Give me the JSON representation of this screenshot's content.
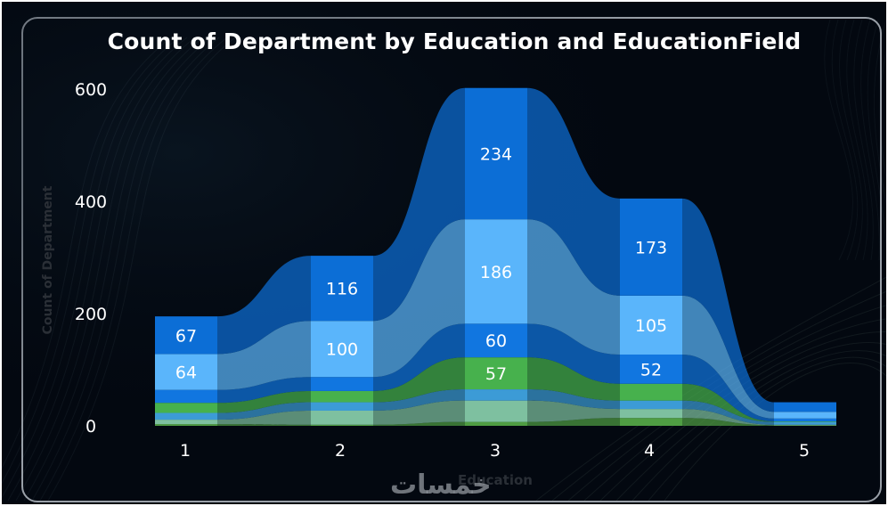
{
  "chart_data": {
    "type": "ribbon",
    "title": "Count of Department by Education and EducationField",
    "xlabel": "Education",
    "ylabel": "Count of Department",
    "categories": [
      "1",
      "2",
      "3",
      "4",
      "5"
    ],
    "ylim": [
      0,
      600
    ],
    "yticks": [
      0,
      200,
      400,
      600
    ],
    "grid": false,
    "legend": "none",
    "series": [
      {
        "color": "#4f9d43",
        "values": [
          3,
          2,
          7,
          14,
          1
        ],
        "show_labels": false
      },
      {
        "color": "#7ec0a0",
        "values": [
          8,
          25,
          38,
          16,
          1
        ],
        "show_labels": false
      },
      {
        "color": "#3c9bd6",
        "values": [
          12,
          15,
          20,
          15,
          5
        ],
        "show_labels": false
      },
      {
        "color": "#47b14d",
        "values": [
          18,
          20,
          57,
          30,
          1
        ],
        "show_labels": [
          false,
          false,
          true,
          false,
          false
        ]
      },
      {
        "color": "#1176e0",
        "values": [
          23,
          25,
          60,
          52,
          5
        ],
        "show_labels": [
          false,
          false,
          true,
          true,
          false
        ]
      },
      {
        "color": "#5ab5fb",
        "values": [
          64,
          100,
          186,
          105,
          12
        ],
        "show_labels": [
          true,
          true,
          true,
          true,
          false
        ]
      },
      {
        "color": "#0c6ed6",
        "values": [
          67,
          116,
          234,
          173,
          17
        ],
        "show_labels": [
          true,
          true,
          true,
          true,
          false
        ]
      }
    ],
    "palette": {
      "background": "#030810",
      "text": "#ffffff",
      "frame": "#9aa0a8",
      "axis_title": "#2a2f36"
    }
  },
  "watermark": "خمسات"
}
